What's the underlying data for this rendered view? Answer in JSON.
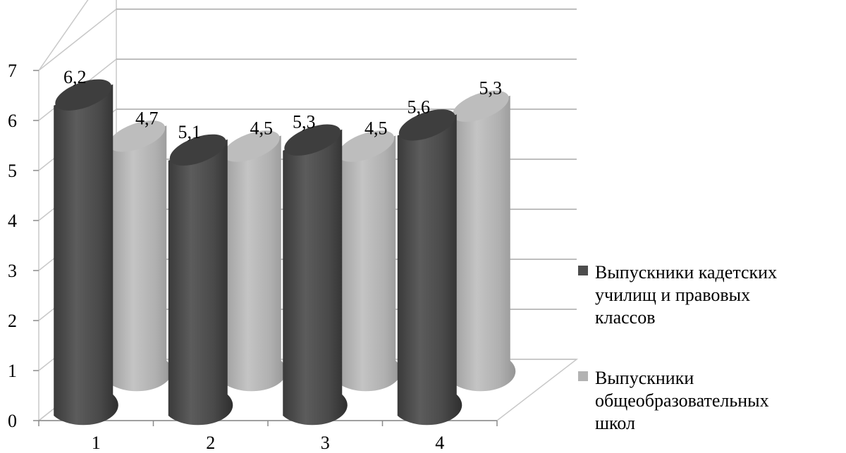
{
  "chart_data": {
    "type": "bar",
    "style": "3d-cylinder",
    "categories": [
      "1",
      "2",
      "3",
      "4"
    ],
    "series": [
      {
        "name": "Выпускники кадетских училищ и правовых классов",
        "name_lines": [
          "Выпускники  кадетских",
          "училищ и правовых",
          "классов"
        ],
        "values": [
          6.2,
          5.1,
          5.3,
          5.6
        ],
        "labels": [
          "6,2",
          "5,1",
          "5,3",
          "5,6"
        ],
        "color": "#4d4d4d"
      },
      {
        "name": "Выпускники общеобразовательных школ",
        "name_lines": [
          "Выпускники",
          "общеобразовательных",
          "школ"
        ],
        "values": [
          4.7,
          4.5,
          4.5,
          5.3
        ],
        "labels": [
          "4,7",
          "4,5",
          "4,5",
          "5,3"
        ],
        "color": "#b3b3b3"
      }
    ],
    "yticks": [
      "0",
      "1",
      "2",
      "3",
      "4",
      "5",
      "6",
      "7"
    ],
    "ylim": [
      0,
      7
    ],
    "grid": true,
    "legend": "right"
  }
}
